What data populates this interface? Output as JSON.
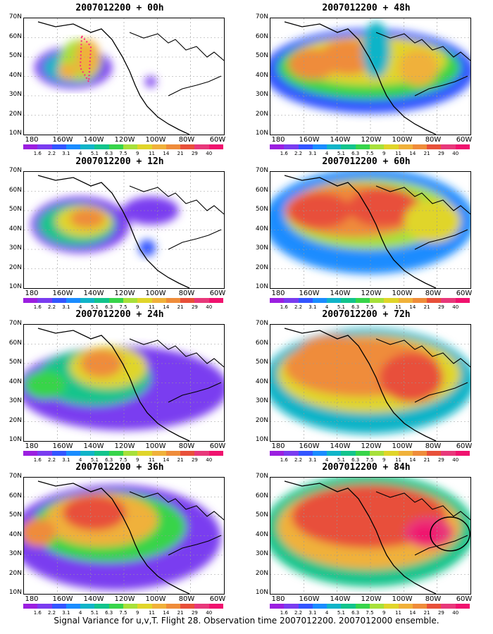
{
  "ylabels": [
    "70N",
    "60N",
    "50N",
    "40N",
    "30N",
    "20N",
    "10N"
  ],
  "xlabels": [
    "180",
    "160W",
    "140W",
    "120W",
    "100W",
    "80W",
    "60W"
  ],
  "colorbar": {
    "labels": [
      "1.6",
      "2.2",
      "3.1",
      "4",
      "5.1",
      "6.3",
      "7.5",
      "9",
      "11",
      "14",
      "21",
      "29",
      "40"
    ],
    "colors": [
      "#9b1fe0",
      "#7a3cf0",
      "#3355ff",
      "#1a8cff",
      "#10b4c8",
      "#12c48c",
      "#37d44a",
      "#a7e03a",
      "#e0d52a",
      "#f0b13a",
      "#ef8c3a",
      "#e8503a",
      "#e8387a",
      "#f0126e"
    ]
  },
  "panels": [
    {
      "title": "2007012200  + 00h"
    },
    {
      "title": "2007012200  + 48h"
    },
    {
      "title": "2007012200  + 12h"
    },
    {
      "title": "2007012200  + 60h"
    },
    {
      "title": "2007012200  + 24h"
    },
    {
      "title": "2007012200  + 72h"
    },
    {
      "title": "2007012200  + 36h"
    },
    {
      "title": "2007012200  + 84h"
    }
  ],
  "caption": "Signal Variance for u,v,T. Flight 28. Observation time 2007012200. 2007012000 ensemble."
}
